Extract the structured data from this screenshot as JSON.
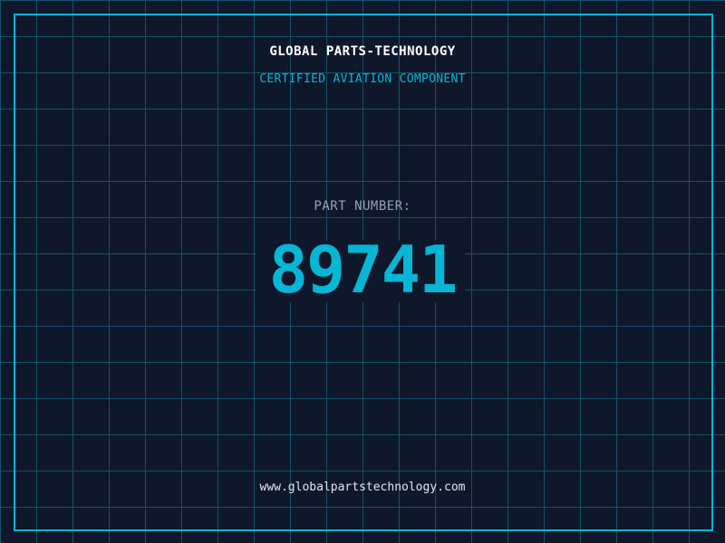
{
  "header": {
    "title": "GLOBAL PARTS-TECHNOLOGY",
    "subtitle": "CERTIFIED AVIATION COMPONENT"
  },
  "part": {
    "label": "PART NUMBER:",
    "number": "89741"
  },
  "footer": {
    "url": "www.globalpartstechnology.com"
  },
  "colors": {
    "background": "#0f172a",
    "accent": "#06b6d4",
    "grid": "#155e75"
  }
}
